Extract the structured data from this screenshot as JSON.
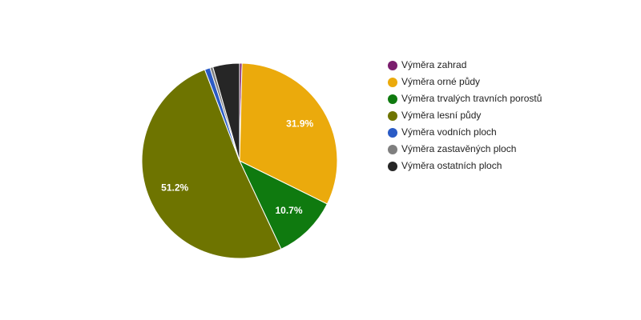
{
  "chart_data": {
    "type": "pie",
    "categories": [
      "Výměra zahrad",
      "Výměra orné půdy",
      "Výměra trvalých travních porostů",
      "Výměra lesní půdy",
      "Výměra vodních ploch",
      "Výměra zastavěných ploch",
      "Výměra ostatních ploch"
    ],
    "values": [
      0.4,
      31.9,
      10.7,
      51.2,
      0.9,
      0.5,
      4.4
    ],
    "value_labels": [
      null,
      "31.9%",
      "10.7%",
      "51.2%",
      null,
      null,
      null
    ],
    "colors": [
      "#7b1e6e",
      "#ebaa0c",
      "#0f7a0f",
      "#6e7400",
      "#2a5bc5",
      "#7f7f7f",
      "#262626"
    ],
    "legend": "right"
  }
}
